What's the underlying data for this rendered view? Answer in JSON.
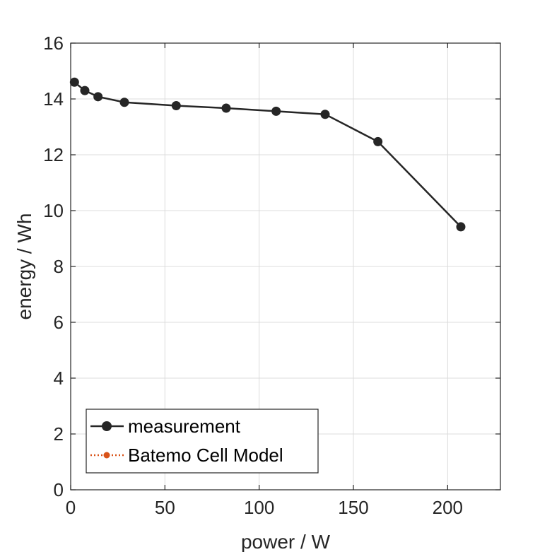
{
  "chart_data": {
    "type": "line",
    "xlabel": "power / W",
    "ylabel": "energy / Wh",
    "xlim": [
      0,
      228
    ],
    "ylim": [
      0,
      16
    ],
    "xticks": [
      0,
      50,
      100,
      150,
      200
    ],
    "yticks": [
      0,
      2,
      4,
      6,
      8,
      10,
      12,
      14,
      16
    ],
    "grid": true,
    "legend_position": "bottom-left",
    "series": [
      {
        "name": "measurement",
        "color": "#262626",
        "line_style": "solid",
        "marker": "circle",
        "x": [
          2,
          7.5,
          14.5,
          28.5,
          56,
          82.5,
          109,
          135,
          163,
          207
        ],
        "y": [
          14.6,
          14.3,
          14.08,
          13.88,
          13.76,
          13.67,
          13.56,
          13.45,
          12.47,
          9.42
        ]
      },
      {
        "name": "Batemo Cell Model",
        "color": "#d95319",
        "line_style": "dotted",
        "marker": "circle",
        "x": [],
        "y": []
      }
    ]
  }
}
